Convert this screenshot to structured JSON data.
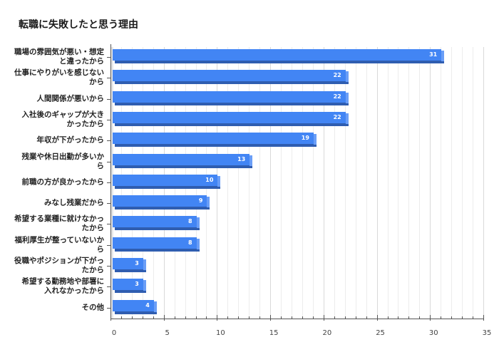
{
  "title": "転職に失敗したと思う理由",
  "chart_data": {
    "type": "bar",
    "orientation": "horizontal",
    "title": "転職に失敗したと思う理由",
    "xlabel": "",
    "ylabel": "",
    "xlim": [
      0,
      35
    ],
    "xticks": [
      0,
      5,
      10,
      15,
      20,
      25,
      30,
      35
    ],
    "grid": true,
    "legend": null,
    "style": "3d",
    "bar_color": "#4285f4",
    "categories": [
      "職場の雰囲気が悪い・想定と違ったから",
      "仕事にやりがいを感じないから",
      "人間関係が悪いから",
      "入社後のギャップが大きかったから",
      "年収が下がったから",
      "残業や休日出勤が多いから",
      "前職の方が良かったから",
      "みなし残業だから",
      "希望する業種に就けなかったから",
      "福利厚生が整っていないから",
      "役職やポジションが下がったから",
      "希望する勤務地や部署に入れなかったから",
      "その他"
    ],
    "values": [
      31,
      22,
      22,
      22,
      19,
      13,
      10,
      9,
      8,
      8,
      3,
      3,
      4
    ]
  },
  "labels_display": [
    [
      "職場の雰囲気が悪い・想定",
      "と違ったから"
    ],
    [
      "仕事にやりがいを感じない",
      "から"
    ],
    [
      "人間関係が悪いから"
    ],
    [
      "入社後のギャップが大き",
      "かったから"
    ],
    [
      "年収が下がったから"
    ],
    [
      "残業や休日出勤が多いか",
      "ら"
    ],
    [
      "前職の方が良かったから"
    ],
    [
      "みなし残業だから"
    ],
    [
      "希望する業種に就けなかっ",
      "たから"
    ],
    [
      "福利厚生が整っていないか",
      "ら"
    ],
    [
      "役職やポジションが下がっ",
      "たから"
    ],
    [
      "希望する勤務地や部署に",
      "入れなかったから"
    ],
    [
      "その他"
    ]
  ]
}
